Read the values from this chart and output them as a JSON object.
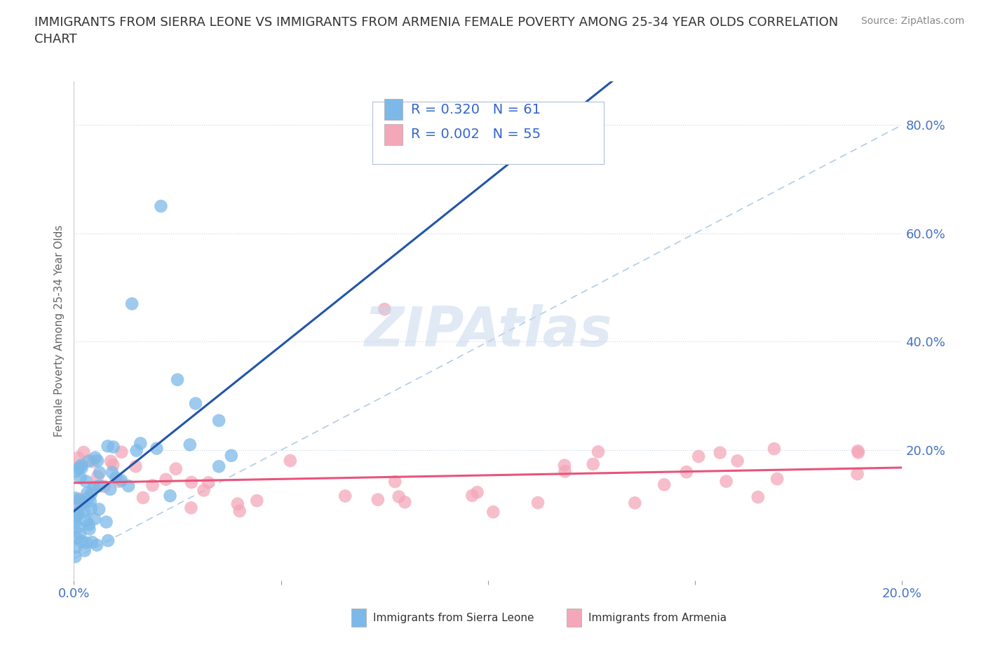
{
  "title": "IMMIGRANTS FROM SIERRA LEONE VS IMMIGRANTS FROM ARMENIA FEMALE POVERTY AMONG 25-34 YEAR OLDS CORRELATION\nCHART",
  "source_text": "Source: ZipAtlas.com",
  "ylabel": "Female Poverty Among 25-34 Year Olds",
  "xmin": 0.0,
  "xmax": 0.2,
  "ymin": -0.04,
  "ymax": 0.88,
  "yticks": [
    0.0,
    0.2,
    0.4,
    0.6,
    0.8
  ],
  "ytick_labels_right": [
    "",
    "20.0%",
    "40.0%",
    "60.0%",
    "80.0%"
  ],
  "xticks": [
    0.0,
    0.05,
    0.1,
    0.15,
    0.2
  ],
  "xtick_labels": [
    "0.0%",
    "",
    "",
    "",
    "20.0%"
  ],
  "sierra_leone_R": 0.32,
  "sierra_leone_N": 61,
  "armenia_R": 0.002,
  "armenia_N": 55,
  "sierra_leone_color": "#7cb9e8",
  "armenia_color": "#f4a7b9",
  "sierra_leone_trend_color": "#2255aa",
  "armenia_trend_color": "#e8547a",
  "diagonal_color": "#b0cce8",
  "grid_color": "#c8d4e8",
  "watermark_color": "#c8d8ec",
  "watermark_text": "ZIPAtlas",
  "legend_border_color": "#b0c0d8",
  "title_fontsize": 13,
  "source_fontsize": 10,
  "tick_fontsize": 13,
  "ylabel_fontsize": 11,
  "legend_fontsize": 14
}
